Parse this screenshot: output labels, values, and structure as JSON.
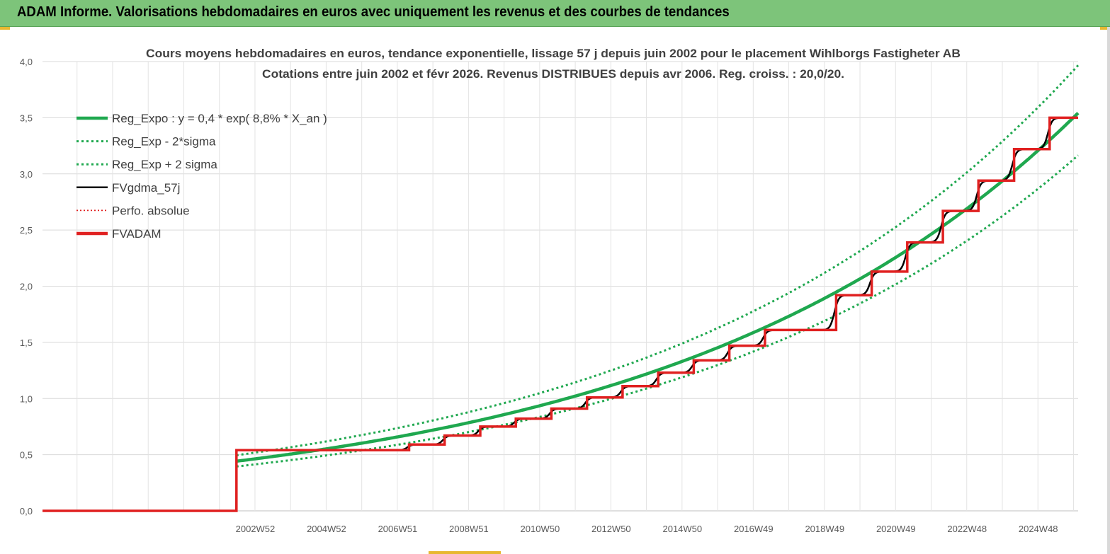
{
  "header": {
    "title": "ADAM Informe. Valorisations hebdomadaires en euros avec uniquement les revenus et des courbes de tendances"
  },
  "chart_data": {
    "type": "line",
    "title_line1": "Cours moyens hebdomadaires en euros, tendance exponentielle, lissage 57 j depuis juin 2002 pour le placement Wihlborgs Fastigheter AB",
    "title_line2": "Cotations entre juin 2002 et févr 2026. Revenus DISTRIBUES depuis avr 2006. Reg. croiss. : 20,0/20.",
    "xlabel": "",
    "ylabel": "",
    "ylim": [
      0,
      4
    ],
    "yticks": [
      "0,0",
      "0,5",
      "1,0",
      "1,5",
      "2,0",
      "2,5",
      "3,0",
      "3,5",
      "4,0"
    ],
    "xtick_labels": [
      "2002W52",
      "2004W52",
      "2006W51",
      "2008W51",
      "2010W50",
      "2012W50",
      "2014W50",
      "2016W49",
      "2018W49",
      "2020W49",
      "2022W48",
      "2024W48"
    ],
    "grid": true,
    "legend_position": "top-left",
    "series": [
      {
        "name": "Reg_Expo : y = 0,4 * exp( 8,8% *  X_an )",
        "color": "#1fa84f",
        "style": "solid-thick",
        "start": 2002.45,
        "end": 2026.1,
        "a": 0.442,
        "rate": 0.088
      },
      {
        "name": "Reg_Exp - 2*sigma",
        "color": "#1fa84f",
        "style": "dotted",
        "start": 2002.45,
        "end": 2026.1,
        "a": 0.395,
        "rate": 0.088
      },
      {
        "name": "Reg_Exp + 2 sigma",
        "color": "#1fa84f",
        "style": "dotted",
        "start": 2002.45,
        "end": 2026.1,
        "a": 0.495,
        "rate": 0.088
      },
      {
        "name": "FVgdma_57j",
        "color": "#000000",
        "style": "solid"
      },
      {
        "name": "Perfo. absolue",
        "color": "#e02020",
        "style": "dotted"
      },
      {
        "name": "FVADAM",
        "color": "#e02020",
        "style": "solid-thick"
      }
    ],
    "fvadam_steps": {
      "x": [
        1997.0,
        2002.45,
        2002.45,
        2006.3,
        2007.3,
        2008.3,
        2009.3,
        2010.3,
        2011.3,
        2012.3,
        2013.3,
        2014.3,
        2015.3,
        2016.3,
        2017.3,
        2019.3,
        2020.3,
        2021.3,
        2022.3,
        2023.3,
        2024.3,
        2025.3,
        2026.1
      ],
      "y": [
        0.0,
        0.0,
        0.54,
        0.54,
        0.59,
        0.67,
        0.75,
        0.82,
        0.91,
        1.01,
        1.11,
        1.23,
        1.34,
        1.47,
        1.61,
        1.92,
        2.13,
        2.39,
        2.67,
        2.94,
        3.22,
        3.5,
        3.5
      ]
    }
  }
}
